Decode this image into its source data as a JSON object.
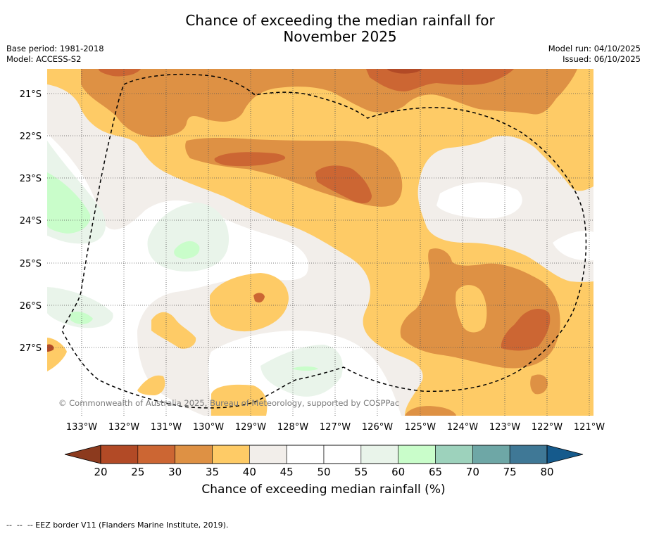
{
  "title_line1": "Chance of exceeding the median rainfall for",
  "title_line2": "November 2025",
  "meta_left": {
    "base_period": "Base period: 1981-2018",
    "model": "Model: ACCESS-S2"
  },
  "meta_right": {
    "model_run": "Model run: 04/10/2025",
    "issued": "Issued: 06/10/2025"
  },
  "copyright": "© Commonwealth of Australia 2025, Bureau of Meteorology, supported by COSPPac",
  "lat_labels": [
    "21°S",
    "22°S",
    "23°S",
    "24°S",
    "25°S",
    "26°S",
    "27°S"
  ],
  "lon_labels": [
    "133°W",
    "132°W",
    "131°W",
    "130°W",
    "129°W",
    "128°W",
    "127°W",
    "126°W",
    "125°W",
    "124°W",
    "123°W",
    "122°W",
    "121°W"
  ],
  "colorbar": {
    "ticks": [
      "20",
      "25",
      "30",
      "35",
      "40",
      "45",
      "50",
      "55",
      "60",
      "65",
      "70",
      "75",
      "80"
    ],
    "colors": [
      "#8c3a1e",
      "#b24a26",
      "#cc6633",
      "#de9144",
      "#fecb66",
      "#f2eeea",
      "#ffffff",
      "#ffffff",
      "#e9f4ea",
      "#c9fdca",
      "#9dd2bc",
      "#6ea7a6",
      "#3f7896",
      "#155a8c"
    ],
    "label": "Chance of exceeding median rainfall (%)"
  },
  "footer": "--  --  -- EEZ border V11 (Flanders Marine Institute, 2019)."
}
